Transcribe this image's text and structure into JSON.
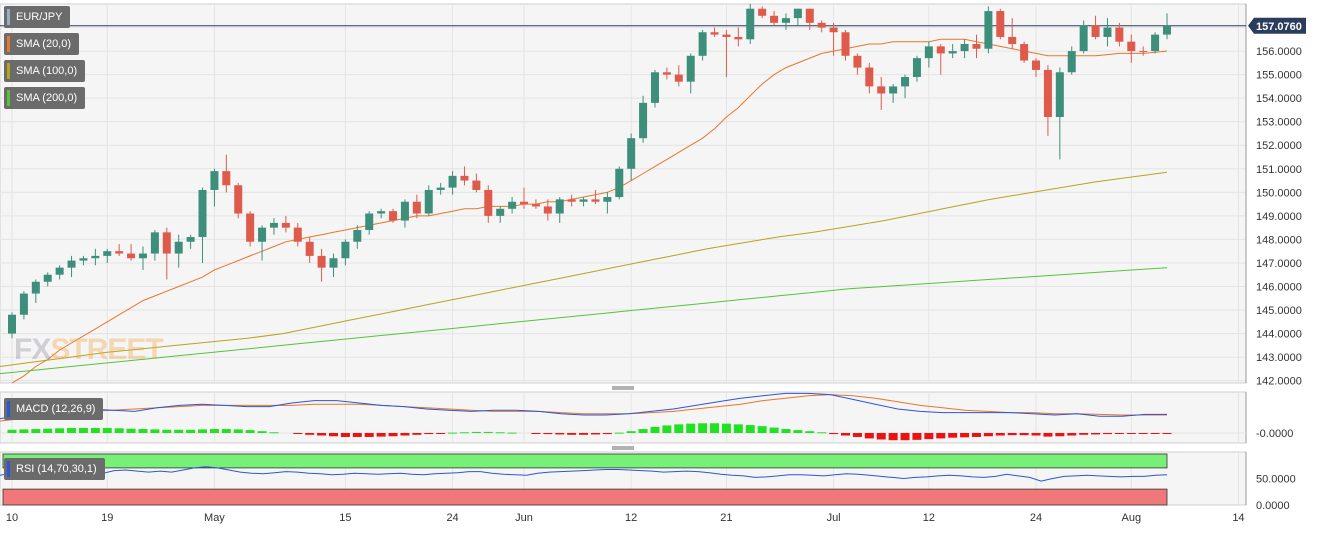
{
  "legends": {
    "symbol": "EUR/JPY",
    "sma20": "SMA (20,0)",
    "sma100": "SMA (100,0)",
    "sma200": "SMA (200,0)",
    "macd": "MACD (12,26,9)",
    "rsi": "RSI (14,70,30,1)"
  },
  "watermark": {
    "fx": "FX",
    "street": "STREET"
  },
  "colors": {
    "up": "#3d8f7c",
    "down": "#de5a4b",
    "sma20": "#e8762b",
    "sma100": "#b8a31c",
    "sma200": "#58c23a",
    "macd_line": "#2b56d8",
    "signal_line": "#e8762b",
    "hist_pos": "#22e022",
    "hist_neg": "#ee1111",
    "rsi_line": "#2b56d8",
    "rsi_upper_zone": "#77f077",
    "rsi_lower_zone": "#f07878",
    "price_line": "#2a3d5c"
  },
  "chart_data": [
    {
      "type": "candlestick",
      "title": "EUR/JPY",
      "current_price": "157.0760",
      "x_tick_labels": [
        "10",
        "19",
        "May",
        "15",
        "24",
        "Jun",
        "12",
        "21",
        "Jul",
        "12",
        "24",
        "Aug",
        "14"
      ],
      "y_tick_labels": [
        "157.0000",
        "156.0000",
        "155.0000",
        "154.0000",
        "153.0000",
        "152.0000",
        "151.0000",
        "150.0000",
        "149.0000",
        "148.0000",
        "147.0000",
        "146.0000",
        "145.0000",
        "144.0000",
        "143.0000",
        "142.0000"
      ],
      "ylim": [
        141.9,
        158.0
      ],
      "grid": true,
      "candles": [
        [
          144.0,
          144.9,
          143.8,
          144.8
        ],
        [
          144.8,
          145.8,
          144.6,
          145.7
        ],
        [
          145.7,
          146.3,
          145.3,
          146.2
        ],
        [
          146.2,
          146.6,
          146.0,
          146.5
        ],
        [
          146.5,
          146.9,
          146.3,
          146.8
        ],
        [
          146.8,
          147.3,
          146.4,
          147.1
        ],
        [
          147.1,
          147.3,
          146.9,
          147.2
        ],
        [
          147.2,
          147.6,
          146.9,
          147.3
        ],
        [
          147.3,
          147.6,
          147.0,
          147.5
        ],
        [
          147.5,
          147.8,
          147.3,
          147.4
        ],
        [
          147.4,
          147.8,
          147.1,
          147.2
        ],
        [
          147.2,
          147.7,
          146.7,
          147.4
        ],
        [
          147.4,
          148.4,
          147.1,
          148.3
        ],
        [
          148.3,
          148.5,
          146.3,
          147.4
        ],
        [
          147.4,
          148.2,
          146.8,
          147.9
        ],
        [
          147.9,
          148.2,
          147.6,
          148.1
        ],
        [
          148.1,
          150.2,
          147.0,
          150.1
        ],
        [
          150.1,
          151.0,
          149.4,
          150.9
        ],
        [
          150.9,
          151.6,
          150.0,
          150.3
        ],
        [
          150.3,
          150.4,
          148.9,
          149.1
        ],
        [
          149.1,
          149.2,
          147.7,
          147.9
        ],
        [
          147.9,
          148.6,
          147.1,
          148.5
        ],
        [
          148.5,
          148.9,
          148.2,
          148.7
        ],
        [
          148.7,
          149.0,
          148.3,
          148.5
        ],
        [
          148.5,
          148.7,
          147.7,
          147.9
        ],
        [
          147.9,
          148.1,
          147.0,
          147.3
        ],
        [
          147.3,
          147.6,
          146.2,
          146.8
        ],
        [
          146.8,
          147.4,
          146.4,
          147.2
        ],
        [
          147.2,
          148.0,
          146.9,
          147.9
        ],
        [
          147.9,
          148.6,
          147.6,
          148.4
        ],
        [
          148.4,
          149.2,
          148.2,
          149.1
        ],
        [
          149.1,
          149.3,
          148.9,
          149.2
        ],
        [
          149.2,
          149.3,
          148.7,
          148.8
        ],
        [
          148.8,
          149.7,
          148.5,
          149.6
        ],
        [
          149.6,
          149.9,
          148.9,
          149.1
        ],
        [
          149.1,
          150.3,
          149.0,
          150.1
        ],
        [
          150.1,
          150.4,
          149.9,
          150.2
        ],
        [
          150.2,
          150.9,
          149.9,
          150.7
        ],
        [
          150.7,
          151.1,
          150.3,
          150.5
        ],
        [
          150.5,
          150.8,
          150.0,
          150.1
        ],
        [
          150.1,
          150.3,
          148.7,
          149.0
        ],
        [
          149.0,
          149.4,
          148.7,
          149.3
        ],
        [
          149.3,
          149.8,
          149.1,
          149.6
        ],
        [
          149.6,
          150.2,
          149.3,
          149.5
        ],
        [
          149.5,
          149.7,
          149.3,
          149.4
        ],
        [
          149.4,
          149.7,
          148.8,
          149.1
        ],
        [
          149.1,
          149.8,
          148.7,
          149.7
        ],
        [
          149.7,
          149.9,
          149.4,
          149.6
        ],
        [
          149.6,
          149.8,
          149.4,
          149.7
        ],
        [
          149.7,
          150.1,
          149.5,
          149.6
        ],
        [
          149.6,
          150.0,
          149.1,
          149.8
        ],
        [
          149.8,
          151.1,
          149.7,
          151.0
        ],
        [
          151.0,
          152.5,
          150.5,
          152.3
        ],
        [
          152.3,
          154.1,
          152.1,
          153.8
        ],
        [
          153.8,
          155.2,
          153.6,
          155.1
        ],
        [
          155.1,
          155.3,
          154.8,
          155.0
        ],
        [
          155.0,
          155.4,
          154.5,
          154.7
        ],
        [
          154.7,
          155.9,
          154.2,
          155.8
        ],
        [
          155.8,
          156.9,
          155.6,
          156.8
        ],
        [
          156.8,
          157.0,
          156.6,
          156.7
        ],
        [
          156.7,
          156.9,
          154.9,
          156.6
        ],
        [
          156.6,
          157.0,
          156.2,
          156.5
        ],
        [
          156.5,
          158.0,
          156.3,
          157.8
        ],
        [
          157.8,
          157.9,
          157.4,
          157.5
        ],
        [
          157.5,
          157.7,
          157.1,
          157.2
        ],
        [
          157.2,
          157.6,
          156.9,
          157.4
        ],
        [
          157.4,
          157.8,
          157.1,
          157.8
        ],
        [
          157.8,
          157.8,
          156.9,
          157.2
        ],
        [
          157.2,
          157.3,
          156.8,
          157.0
        ],
        [
          157.0,
          157.2,
          155.8,
          156.8
        ],
        [
          156.8,
          156.9,
          155.6,
          155.8
        ],
        [
          155.8,
          155.9,
          155.0,
          155.3
        ],
        [
          155.3,
          155.5,
          154.2,
          154.5
        ],
        [
          154.5,
          154.9,
          153.5,
          154.2
        ],
        [
          154.2,
          154.6,
          153.8,
          154.5
        ],
        [
          154.5,
          155.0,
          154.0,
          154.9
        ],
        [
          154.9,
          155.8,
          154.7,
          155.7
        ],
        [
          155.7,
          156.4,
          155.3,
          156.2
        ],
        [
          156.2,
          156.3,
          155.0,
          155.9
        ],
        [
          155.9,
          156.3,
          155.7,
          156.0
        ],
        [
          156.0,
          156.5,
          155.7,
          156.3
        ],
        [
          156.3,
          156.7,
          155.7,
          156.1
        ],
        [
          156.1,
          157.9,
          155.9,
          157.7
        ],
        [
          157.7,
          157.8,
          156.5,
          156.6
        ],
        [
          156.6,
          157.4,
          156.1,
          156.3
        ],
        [
          156.3,
          156.4,
          155.5,
          155.6
        ],
        [
          155.6,
          155.7,
          154.9,
          155.2
        ],
        [
          155.2,
          155.4,
          152.4,
          153.2
        ],
        [
          153.2,
          155.3,
          151.4,
          155.1
        ],
        [
          155.1,
          156.2,
          155.0,
          156.0
        ],
        [
          156.0,
          157.3,
          155.9,
          157.1
        ],
        [
          157.1,
          157.5,
          156.5,
          156.6
        ],
        [
          156.6,
          157.4,
          156.2,
          157.0
        ],
        [
          157.0,
          157.2,
          156.2,
          156.4
        ],
        [
          156.4,
          156.7,
          155.5,
          156.0
        ],
        [
          156.0,
          156.2,
          155.8,
          155.98
        ],
        [
          156.0,
          156.8,
          155.9,
          156.7
        ],
        [
          156.7,
          157.6,
          156.5,
          157.076
        ]
      ],
      "series": [
        {
          "name": "SMA (20,0)",
          "values": [
            141.9,
            142.2,
            142.6,
            142.9,
            143.3,
            143.6,
            143.9,
            144.2,
            144.5,
            144.8,
            145.1,
            145.4,
            145.6,
            145.8,
            146.0,
            146.2,
            146.4,
            146.7,
            146.9,
            147.1,
            147.3,
            147.5,
            147.7,
            147.9,
            148.0,
            148.1,
            148.2,
            148.3,
            148.4,
            148.5,
            148.6,
            148.7,
            148.8,
            148.9,
            149.0,
            149.0,
            149.1,
            149.2,
            149.3,
            149.3,
            149.4,
            149.4,
            149.4,
            149.5,
            149.5,
            149.6,
            149.6,
            149.7,
            149.8,
            149.9,
            150.0,
            150.2,
            150.5,
            150.8,
            151.1,
            151.4,
            151.7,
            152.0,
            152.3,
            152.7,
            153.2,
            153.6,
            154.1,
            154.6,
            155.0,
            155.3,
            155.5,
            155.7,
            155.9,
            156.0,
            156.1,
            156.2,
            156.3,
            156.3,
            156.4,
            156.4,
            156.4,
            156.4,
            156.5,
            156.5,
            156.5,
            156.4,
            156.3,
            156.2,
            156.1,
            156.0,
            155.9,
            155.8,
            155.8,
            155.8,
            155.8,
            155.8,
            155.85,
            155.9,
            155.9,
            155.9,
            155.95,
            156.0
          ]
        },
        {
          "name": "SMA (100,0)",
          "values": [
            142.6,
            142.8,
            143.0,
            143.2,
            143.35,
            143.5,
            143.65,
            143.8,
            144.0,
            144.3,
            144.6,
            144.9,
            145.2,
            145.5,
            145.8,
            146.1,
            146.4,
            146.7,
            147.0,
            147.3,
            147.6,
            147.85,
            148.1,
            148.3,
            148.55,
            148.8,
            149.1,
            149.4,
            149.7,
            149.95,
            150.2,
            150.45,
            150.65,
            150.85
          ]
        },
        {
          "name": "SMA (200,0)",
          "values": [
            142.3,
            142.45,
            142.6,
            142.75,
            142.9,
            143.05,
            143.2,
            143.35,
            143.5,
            143.65,
            143.8,
            143.95,
            144.1,
            144.25,
            144.4,
            144.55,
            144.7,
            144.85,
            145.0,
            145.15,
            145.3,
            145.45,
            145.6,
            145.75,
            145.9,
            146.0,
            146.1,
            146.2,
            146.3,
            146.4,
            146.5,
            146.6,
            146.7,
            146.8
          ]
        }
      ]
    },
    {
      "type": "bar+line",
      "title": "MACD (12,26,9)",
      "y_tick_labels": [
        "-0.0000"
      ],
      "histogram": [
        0.18,
        0.2,
        0.22,
        0.24,
        0.26,
        0.28,
        0.28,
        0.28,
        0.28,
        0.26,
        0.24,
        0.22,
        0.2,
        0.18,
        0.18,
        0.18,
        0.2,
        0.22,
        0.22,
        0.2,
        0.16,
        0.1,
        0.04,
        0.0,
        -0.05,
        -0.1,
        -0.14,
        -0.18,
        -0.22,
        -0.22,
        -0.22,
        -0.2,
        -0.18,
        -0.14,
        -0.1,
        -0.06,
        -0.02,
        0.02,
        0.04,
        0.06,
        0.06,
        0.04,
        0.02,
        0.0,
        -0.04,
        -0.06,
        -0.08,
        -0.1,
        -0.1,
        -0.08,
        -0.06,
        0.02,
        0.1,
        0.22,
        0.34,
        0.42,
        0.48,
        0.52,
        0.54,
        0.54,
        0.52,
        0.48,
        0.44,
        0.38,
        0.3,
        0.22,
        0.16,
        0.1,
        0.04,
        -0.06,
        -0.14,
        -0.22,
        -0.3,
        -0.36,
        -0.4,
        -0.4,
        -0.38,
        -0.34,
        -0.3,
        -0.26,
        -0.24,
        -0.22,
        -0.18,
        -0.14,
        -0.12,
        -0.12,
        -0.14,
        -0.2,
        -0.18,
        -0.14,
        -0.1,
        -0.08,
        -0.06,
        -0.05,
        -0.04,
        -0.03,
        -0.02,
        -0.02
      ],
      "series": [
        {
          "name": "MACD",
          "values": [
            0.2,
            0.5,
            0.8,
            1.0,
            1.0,
            0.9,
            0.8,
            1.1,
            1.3,
            1.4,
            1.3,
            1.2,
            1.2,
            1.5,
            1.7,
            1.7,
            1.5,
            1.3,
            1.2,
            1.0,
            0.9,
            0.8,
            0.9,
            0.9,
            0.8,
            0.6,
            0.5,
            0.5,
            0.6,
            0.8,
            1.0,
            1.3,
            1.6,
            1.9,
            2.1,
            2.3,
            2.3,
            2.2,
            1.8,
            1.4,
            1.0,
            0.8,
            0.7,
            0.7,
            0.7,
            0.7,
            0.6,
            0.5,
            0.6,
            0.4,
            0.4,
            0.55,
            0.55
          ]
        },
        {
          "name": "Signal",
          "values": [
            0.0,
            0.2,
            0.4,
            0.6,
            0.8,
            0.9,
            1.0,
            1.1,
            1.2,
            1.3,
            1.3,
            1.3,
            1.3,
            1.3,
            1.4,
            1.4,
            1.4,
            1.3,
            1.2,
            1.1,
            1.0,
            0.9,
            0.8,
            0.8,
            0.8,
            0.7,
            0.6,
            0.6,
            0.6,
            0.7,
            0.8,
            1.0,
            1.2,
            1.4,
            1.7,
            1.9,
            2.1,
            2.2,
            2.1,
            1.9,
            1.6,
            1.3,
            1.1,
            0.9,
            0.8,
            0.7,
            0.7,
            0.6,
            0.6,
            0.55,
            0.5,
            0.5,
            0.5
          ]
        }
      ]
    },
    {
      "type": "line",
      "title": "RSI (14,70,30,1)",
      "y_tick_labels": [
        "50.0000",
        "0.0000"
      ],
      "ylim": [
        0,
        100
      ],
      "series": [
        {
          "name": "RSI",
          "values": [
            56,
            60,
            62,
            63,
            65,
            64,
            63,
            60,
            58,
            60,
            65,
            66,
            64,
            62,
            64,
            62,
            66,
            70,
            72,
            70,
            66,
            62,
            60,
            59,
            61,
            63,
            62,
            60,
            59,
            57,
            58,
            60,
            59,
            58,
            59,
            60,
            58,
            57,
            59,
            60,
            61,
            63,
            63,
            60,
            58,
            57,
            56,
            60,
            62,
            63,
            64,
            65,
            66,
            67,
            67,
            66,
            65,
            64,
            62,
            63,
            64,
            63,
            61,
            58,
            56,
            55,
            52,
            53,
            55,
            57,
            57,
            56,
            55,
            57,
            59,
            58,
            56,
            54,
            52,
            50,
            52,
            53,
            55,
            56,
            55,
            53,
            52,
            54,
            58,
            55,
            52,
            45,
            50,
            54,
            55,
            56,
            55,
            54,
            53,
            54,
            54,
            56,
            57
          ]
        }
      ]
    }
  ]
}
